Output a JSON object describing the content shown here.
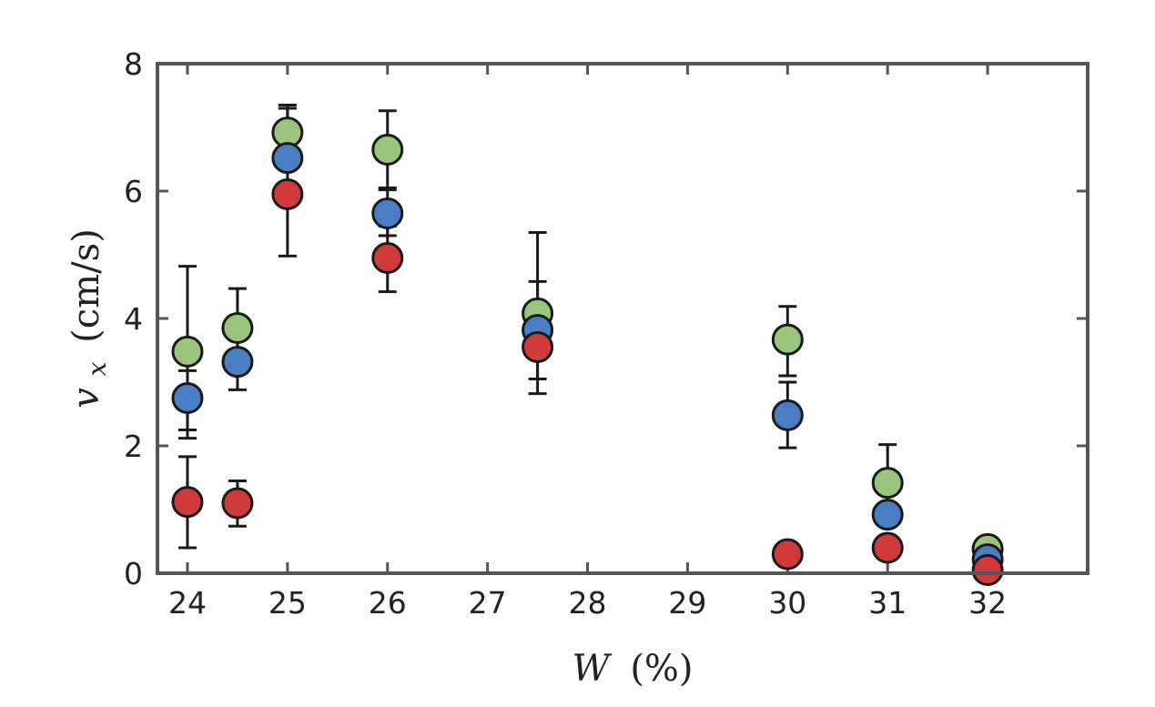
{
  "chart_data": {
    "type": "scatter",
    "xlabel": {
      "var": "W",
      "unit": "(%)"
    },
    "ylabel": {
      "var": "v",
      "sub": "x",
      "unit": "(cm/s)"
    },
    "xlim": [
      23.7,
      33.0
    ],
    "ylim": [
      0,
      8
    ],
    "xticks": [
      24,
      25,
      26,
      27,
      28,
      29,
      30,
      31,
      32
    ],
    "yticks": [
      0,
      2,
      4,
      6,
      8
    ],
    "grid": false,
    "legend": "none",
    "series": [
      {
        "color": "#9bc57c",
        "points": [
          {
            "x": 24.0,
            "y": 3.48,
            "lo": 2.25,
            "hi": 4.82
          },
          {
            "x": 24.5,
            "y": 3.85,
            "lo": 3.25,
            "hi": 4.47
          },
          {
            "x": 25.0,
            "y": 6.92,
            "lo": 6.52,
            "hi": 7.35
          },
          {
            "x": 26.0,
            "y": 6.65,
            "lo": 6.05,
            "hi": 7.26
          },
          {
            "x": 27.5,
            "y": 4.08,
            "lo": 3.6,
            "hi": 5.35
          },
          {
            "x": 30.0,
            "y": 3.67,
            "lo": 3.1,
            "hi": 4.19
          },
          {
            "x": 31.0,
            "y": 1.42,
            "lo": 0.9,
            "hi": 2.02
          },
          {
            "x": 32.0,
            "y": 0.38,
            "lo": 0.3,
            "hi": 0.45
          }
        ]
      },
      {
        "color": "#4a7ec4",
        "points": [
          {
            "x": 24.0,
            "y": 2.75,
            "lo": 2.12,
            "hi": 3.18
          },
          {
            "x": 24.5,
            "y": 3.32,
            "lo": 2.88,
            "hi": 3.72
          },
          {
            "x": 25.0,
            "y": 6.52,
            "lo": 6.52,
            "hi": 7.3
          },
          {
            "x": 26.0,
            "y": 5.65,
            "lo": 5.3,
            "hi": 6.02
          },
          {
            "x": 27.5,
            "y": 3.82,
            "lo": 3.05,
            "hi": 4.58
          },
          {
            "x": 30.0,
            "y": 2.48,
            "lo": 1.97,
            "hi": 3.0
          },
          {
            "x": 31.0,
            "y": 0.92,
            "lo": 0.88,
            "hi": 0.95
          },
          {
            "x": 32.0,
            "y": 0.22,
            "lo": 0.2,
            "hi": 0.25
          }
        ]
      },
      {
        "color": "#d13a3a",
        "points": [
          {
            "x": 24.0,
            "y": 1.12,
            "lo": 0.4,
            "hi": 1.83
          },
          {
            "x": 24.5,
            "y": 1.1,
            "lo": 0.74,
            "hi": 1.45
          },
          {
            "x": 25.0,
            "y": 5.95,
            "lo": 4.98,
            "hi": 6.88
          },
          {
            "x": 26.0,
            "y": 4.95,
            "lo": 4.42,
            "hi": 5.45
          },
          {
            "x": 27.5,
            "y": 3.55,
            "lo": 2.82,
            "hi": 4.2
          },
          {
            "x": 30.0,
            "y": 0.3,
            "lo": 0.15,
            "hi": 0.38
          },
          {
            "x": 31.0,
            "y": 0.4,
            "lo": 0.3,
            "hi": 0.5
          },
          {
            "x": 32.0,
            "y": 0.05,
            "lo": 0.05,
            "hi": 0.08
          }
        ]
      }
    ]
  }
}
